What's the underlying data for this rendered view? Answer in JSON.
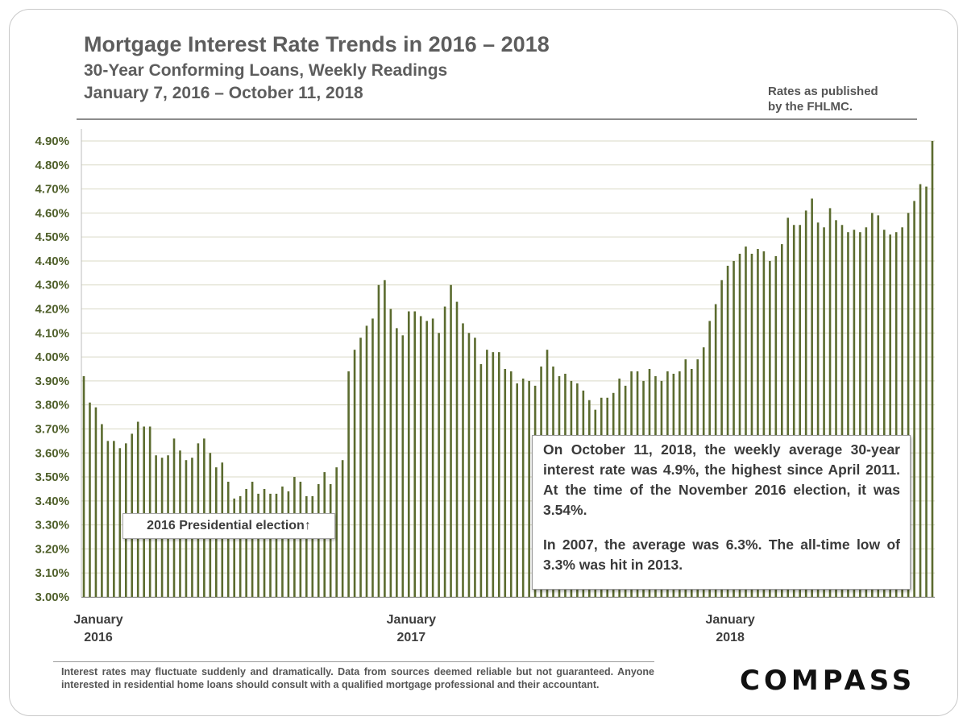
{
  "title": "Mortgage Interest Rate Trends in 2016 – 2018",
  "subtitle1": "30-Year Conforming Loans, Weekly Readings",
  "subtitle2": "January 7, 2016 – October 11, 2018",
  "source_note": [
    "Rates as published",
    "by the FHLMC."
  ],
  "callout": "2016 Presidential election↑",
  "note_paragraphs": [
    "On October 11, 2018, the weekly average 30-year interest rate was 4.9%, the highest since April 2011. At the time of the November 2016 election, it was 3.54%.",
    "In 2007, the average was 6.3%. The all-time low of 3.3% was hit in 2013."
  ],
  "disclaimer": "Interest rates may fluctuate suddenly and dramatically. Data from sources deemed reliable but not guaranteed. Anyone interested in residential home loans should consult with a qualified mortgage professional and their accountant.",
  "logo": "COMPASS",
  "colors": {
    "bar": "#5b6b2f",
    "tick_text": "#4f5f2a",
    "grid": "#d9d9c6"
  },
  "chart_data": {
    "type": "bar",
    "xlabel": "",
    "ylabel": "",
    "ylim": [
      3.0,
      4.9
    ],
    "y_ticks": [
      "3.00%",
      "3.10%",
      "3.20%",
      "3.30%",
      "3.40%",
      "3.50%",
      "3.60%",
      "3.70%",
      "3.80%",
      "3.90%",
      "4.00%",
      "4.10%",
      "4.20%",
      "4.30%",
      "4.40%",
      "4.50%",
      "4.60%",
      "4.70%",
      "4.80%",
      "4.90%"
    ],
    "x_tick_labels": [
      {
        "lines": [
          "January",
          "2016"
        ],
        "index": 0
      },
      {
        "lines": [
          "January",
          "2017"
        ],
        "index": 52
      },
      {
        "lines": [
          "January",
          "2018"
        ],
        "index": 105
      }
    ],
    "grid": true,
    "legend": "none",
    "series": [
      {
        "values": [
          3.92,
          3.81,
          3.79,
          3.72,
          3.65,
          3.65,
          3.62,
          3.64,
          3.68,
          3.73,
          3.71,
          3.71,
          3.59,
          3.58,
          3.59,
          3.66,
          3.61,
          3.57,
          3.58,
          3.64,
          3.66,
          3.6,
          3.54,
          3.56,
          3.48,
          3.41,
          3.42,
          3.45,
          3.48,
          3.43,
          3.45,
          3.43,
          3.43,
          3.46,
          3.44,
          3.5,
          3.48,
          3.42,
          3.42,
          3.47,
          3.52,
          3.47,
          3.54,
          3.57,
          3.94,
          4.03,
          4.08,
          4.13,
          4.16,
          4.3,
          4.32,
          4.2,
          4.12,
          4.09,
          4.19,
          4.19,
          4.17,
          4.15,
          4.16,
          4.1,
          4.21,
          4.3,
          4.23,
          4.14,
          4.1,
          4.08,
          3.97,
          4.03,
          4.02,
          4.02,
          3.95,
          3.94,
          3.89,
          3.91,
          3.9,
          3.88,
          3.96,
          4.03,
          3.96,
          3.92,
          3.93,
          3.9,
          3.89,
          3.86,
          3.82,
          3.78,
          3.83,
          3.83,
          3.85,
          3.91,
          3.88,
          3.94,
          3.94,
          3.9,
          3.95,
          3.92,
          3.9,
          3.94,
          3.93,
          3.94,
          3.99,
          3.95,
          3.99,
          4.04,
          4.15,
          4.22,
          4.32,
          4.38,
          4.4,
          4.43,
          4.46,
          4.43,
          4.45,
          4.44,
          4.4,
          4.42,
          4.47,
          4.58,
          4.55,
          4.55,
          4.61,
          4.66,
          4.56,
          4.54,
          4.62,
          4.57,
          4.55,
          4.52,
          4.53,
          4.52,
          4.54,
          4.6,
          4.59,
          4.53,
          4.51,
          4.52,
          4.54,
          4.6,
          4.65,
          4.72,
          4.71,
          4.9
        ]
      }
    ]
  }
}
